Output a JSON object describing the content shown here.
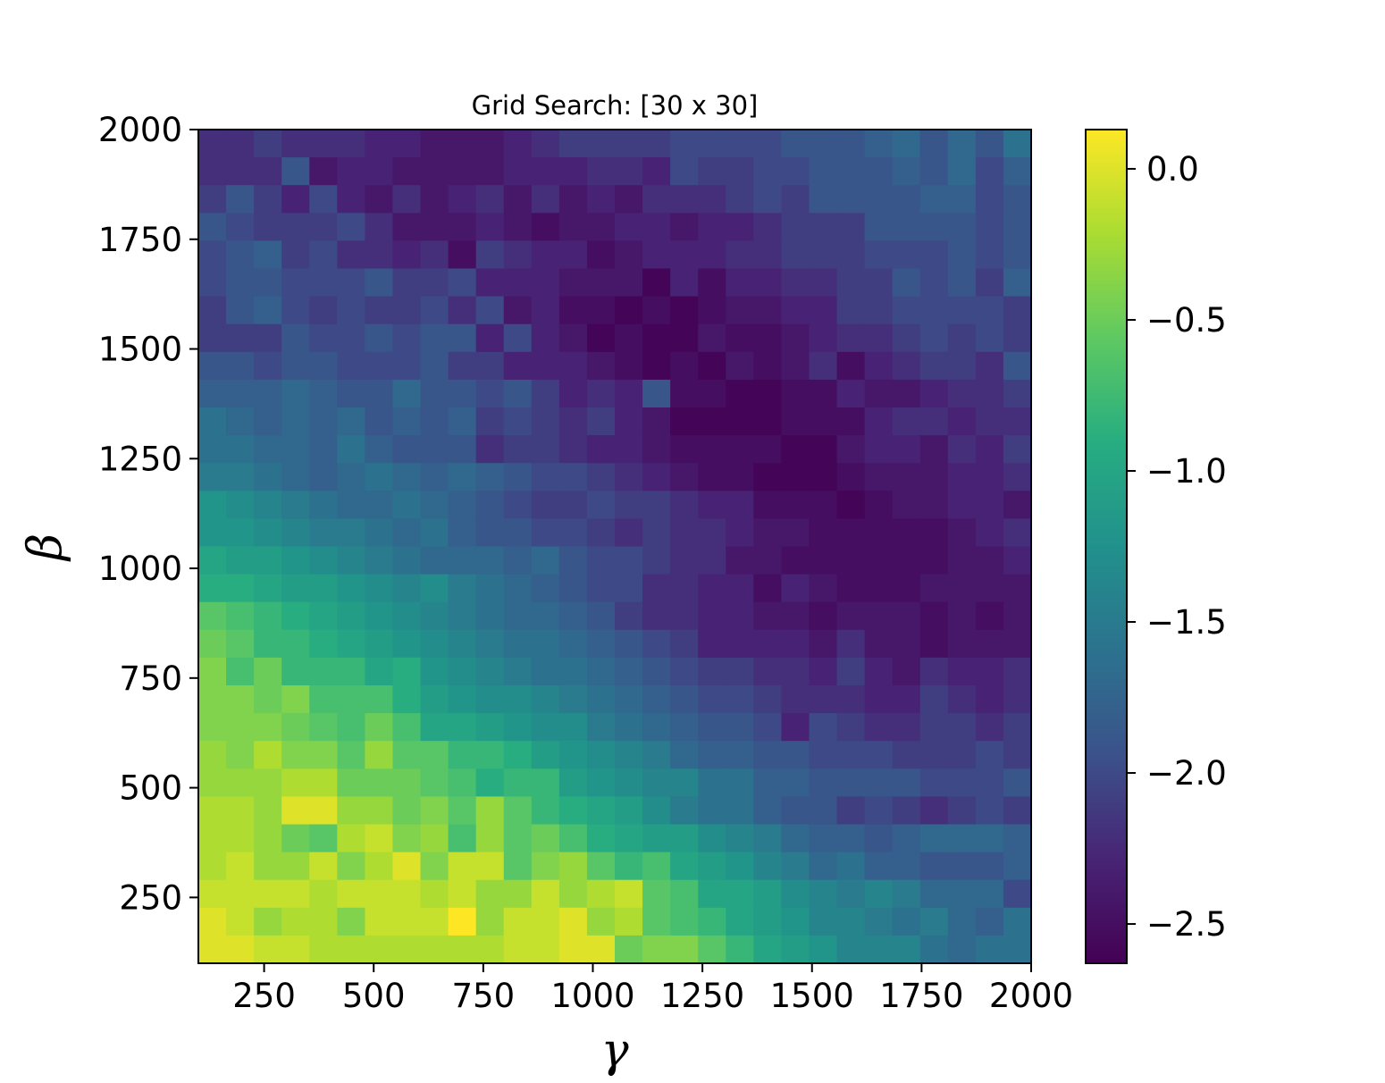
{
  "chart_data": {
    "type": "heatmap",
    "title": "Grid Search: [30 x 30]",
    "xlabel": "γ",
    "ylabel": "β",
    "xlim": [
      100,
      2000
    ],
    "ylim": [
      100,
      2000
    ],
    "x_ticks": [
      250,
      500,
      750,
      1000,
      1250,
      1500,
      1750,
      2000
    ],
    "y_ticks": [
      250,
      500,
      750,
      1000,
      1250,
      1500,
      1750,
      2000
    ],
    "colorbar": {
      "colormap": "viridis",
      "vmin": -2.63,
      "vmax": 0.13,
      "ticks": [
        0.0,
        -0.5,
        -1.0,
        -1.5,
        -2.0,
        -2.5
      ],
      "tick_labels": [
        "0.0",
        "−0.5",
        "−1.0",
        "−1.5",
        "−2.0",
        "−2.5"
      ]
    },
    "grid_size": [
      30,
      30
    ],
    "z_rows_top_to_bottom": [
      [
        -2.2,
        -2.2,
        -2.1,
        -2.2,
        -2.2,
        -2.2,
        -2.3,
        -2.3,
        -2.4,
        -2.4,
        -2.4,
        -2.3,
        -2.2,
        -2.1,
        -2.1,
        -2.1,
        -2.1,
        -2.0,
        -2.0,
        -2.0,
        -2.0,
        -1.9,
        -1.9,
        -1.9,
        -1.8,
        -1.7,
        -1.9,
        -1.7,
        -1.9,
        -1.6
      ],
      [
        -2.2,
        -2.2,
        -2.2,
        -1.9,
        -2.4,
        -2.3,
        -2.3,
        -2.4,
        -2.4,
        -2.4,
        -2.4,
        -2.3,
        -2.3,
        -2.3,
        -2.2,
        -2.2,
        -2.3,
        -2.0,
        -2.1,
        -2.1,
        -2.0,
        -2.0,
        -1.9,
        -1.9,
        -1.9,
        -1.8,
        -1.9,
        -1.7,
        -2.0,
        -1.8
      ],
      [
        -2.1,
        -1.9,
        -2.1,
        -2.3,
        -2.0,
        -2.3,
        -2.4,
        -2.2,
        -2.4,
        -2.3,
        -2.2,
        -2.4,
        -2.2,
        -2.4,
        -2.3,
        -2.4,
        -2.2,
        -2.2,
        -2.2,
        -2.1,
        -2.0,
        -2.1,
        -1.9,
        -1.9,
        -1.9,
        -1.9,
        -1.8,
        -1.8,
        -2.0,
        -1.9
      ],
      [
        -1.9,
        -2.0,
        -2.1,
        -2.1,
        -2.1,
        -2.0,
        -2.2,
        -2.4,
        -2.4,
        -2.4,
        -2.3,
        -2.4,
        -2.5,
        -2.4,
        -2.4,
        -2.3,
        -2.3,
        -2.4,
        -2.3,
        -2.3,
        -2.2,
        -2.1,
        -2.1,
        -2.1,
        -1.9,
        -1.9,
        -1.9,
        -1.9,
        -2.0,
        -1.9
      ],
      [
        -2.0,
        -1.9,
        -1.8,
        -2.1,
        -2.0,
        -2.2,
        -2.2,
        -2.3,
        -2.2,
        -2.5,
        -2.1,
        -2.2,
        -2.3,
        -2.3,
        -2.5,
        -2.4,
        -2.3,
        -2.3,
        -2.3,
        -2.2,
        -2.2,
        -2.1,
        -2.1,
        -2.1,
        -2.0,
        -2.0,
        -2.0,
        -1.9,
        -2.0,
        -1.9
      ],
      [
        -2.0,
        -1.9,
        -1.9,
        -2.0,
        -2.0,
        -2.0,
        -1.9,
        -2.1,
        -2.1,
        -2.0,
        -2.3,
        -2.3,
        -2.3,
        -2.4,
        -2.4,
        -2.4,
        -2.6,
        -2.3,
        -2.5,
        -2.3,
        -2.3,
        -2.2,
        -2.2,
        -2.1,
        -2.1,
        -1.9,
        -2.0,
        -1.9,
        -2.1,
        -1.8
      ],
      [
        -2.1,
        -1.9,
        -1.8,
        -2.0,
        -2.1,
        -2.0,
        -2.1,
        -2.1,
        -2.0,
        -2.2,
        -2.0,
        -2.4,
        -2.3,
        -2.5,
        -2.5,
        -2.6,
        -2.5,
        -2.6,
        -2.5,
        -2.4,
        -2.4,
        -2.3,
        -2.3,
        -2.1,
        -2.1,
        -2.0,
        -2.0,
        -2.0,
        -2.0,
        -2.1
      ],
      [
        -2.1,
        -2.1,
        -2.1,
        -1.9,
        -2.0,
        -2.0,
        -1.9,
        -2.0,
        -1.9,
        -1.9,
        -2.3,
        -2.0,
        -2.3,
        -2.4,
        -2.6,
        -2.5,
        -2.6,
        -2.6,
        -2.4,
        -2.5,
        -2.5,
        -2.4,
        -2.3,
        -2.2,
        -2.2,
        -2.1,
        -2.0,
        -2.1,
        -2.0,
        -2.1
      ],
      [
        -1.9,
        -1.9,
        -2.0,
        -1.9,
        -1.9,
        -2.0,
        -2.0,
        -2.0,
        -1.9,
        -2.1,
        -2.1,
        -2.3,
        -2.3,
        -2.3,
        -2.4,
        -2.5,
        -2.6,
        -2.5,
        -2.6,
        -2.4,
        -2.5,
        -2.4,
        -2.2,
        -2.5,
        -2.3,
        -2.2,
        -2.1,
        -2.1,
        -2.2,
        -1.9
      ],
      [
        -1.8,
        -1.8,
        -1.8,
        -1.7,
        -1.8,
        -1.9,
        -1.9,
        -1.7,
        -1.9,
        -1.9,
        -2.0,
        -1.9,
        -2.1,
        -2.3,
        -2.2,
        -2.3,
        -1.9,
        -2.5,
        -2.5,
        -2.6,
        -2.6,
        -2.5,
        -2.5,
        -2.3,
        -2.4,
        -2.4,
        -2.3,
        -2.2,
        -2.2,
        -2.1
      ],
      [
        -1.6,
        -1.7,
        -1.8,
        -1.7,
        -1.8,
        -1.7,
        -1.9,
        -1.8,
        -1.9,
        -1.8,
        -2.1,
        -2.0,
        -2.1,
        -2.2,
        -2.1,
        -2.3,
        -2.4,
        -2.6,
        -2.6,
        -2.6,
        -2.6,
        -2.5,
        -2.5,
        -2.5,
        -2.3,
        -2.2,
        -2.2,
        -2.3,
        -2.2,
        -2.2
      ],
      [
        -1.6,
        -1.6,
        -1.7,
        -1.7,
        -1.8,
        -1.6,
        -1.8,
        -1.9,
        -1.9,
        -1.9,
        -2.2,
        -2.1,
        -2.1,
        -2.2,
        -2.3,
        -2.3,
        -2.4,
        -2.5,
        -2.5,
        -2.5,
        -2.5,
        -2.6,
        -2.6,
        -2.4,
        -2.3,
        -2.3,
        -2.4,
        -2.2,
        -2.3,
        -2.1
      ],
      [
        -1.5,
        -1.5,
        -1.6,
        -1.7,
        -1.8,
        -1.7,
        -1.6,
        -1.7,
        -1.8,
        -1.7,
        -1.8,
        -1.9,
        -2.0,
        -2.0,
        -2.1,
        -2.2,
        -2.3,
        -2.4,
        -2.5,
        -2.5,
        -2.6,
        -2.6,
        -2.6,
        -2.5,
        -2.4,
        -2.4,
        -2.4,
        -2.3,
        -2.3,
        -2.2
      ],
      [
        -1.2,
        -1.3,
        -1.4,
        -1.5,
        -1.6,
        -1.7,
        -1.7,
        -1.6,
        -1.7,
        -1.8,
        -1.9,
        -2.0,
        -2.1,
        -2.1,
        -2.0,
        -2.1,
        -2.1,
        -2.2,
        -2.3,
        -2.3,
        -2.5,
        -2.5,
        -2.5,
        -2.6,
        -2.5,
        -2.4,
        -2.4,
        -2.3,
        -2.3,
        -2.4
      ],
      [
        -1.2,
        -1.2,
        -1.3,
        -1.4,
        -1.5,
        -1.5,
        -1.6,
        -1.7,
        -1.6,
        -1.8,
        -1.9,
        -1.9,
        -2.0,
        -2.0,
        -2.1,
        -2.2,
        -2.1,
        -2.2,
        -2.2,
        -2.3,
        -2.4,
        -2.4,
        -2.5,
        -2.5,
        -2.5,
        -2.5,
        -2.5,
        -2.4,
        -2.3,
        -2.2
      ],
      [
        -1.0,
        -1.1,
        -1.1,
        -1.2,
        -1.3,
        -1.4,
        -1.5,
        -1.6,
        -1.7,
        -1.7,
        -1.7,
        -1.8,
        -1.7,
        -1.9,
        -2.0,
        -2.0,
        -2.1,
        -2.2,
        -2.2,
        -2.4,
        -2.4,
        -2.5,
        -2.5,
        -2.5,
        -2.5,
        -2.5,
        -2.5,
        -2.4,
        -2.4,
        -2.3
      ],
      [
        -0.9,
        -0.9,
        -1.0,
        -1.1,
        -1.1,
        -1.2,
        -1.3,
        -1.4,
        -1.3,
        -1.5,
        -1.6,
        -1.7,
        -1.8,
        -1.9,
        -2.0,
        -2.0,
        -2.2,
        -2.2,
        -2.3,
        -2.3,
        -2.5,
        -2.3,
        -2.4,
        -2.5,
        -2.5,
        -2.5,
        -2.4,
        -2.4,
        -2.4,
        -2.4
      ],
      [
        -0.6,
        -0.7,
        -0.8,
        -0.9,
        -1.0,
        -1.1,
        -1.2,
        -1.3,
        -1.4,
        -1.5,
        -1.6,
        -1.7,
        -1.7,
        -1.8,
        -1.9,
        -2.1,
        -2.2,
        -2.2,
        -2.3,
        -2.3,
        -2.4,
        -2.4,
        -2.5,
        -2.4,
        -2.4,
        -2.4,
        -2.5,
        -2.4,
        -2.5,
        -2.4
      ],
      [
        -0.5,
        -0.6,
        -0.8,
        -0.8,
        -0.9,
        -1.0,
        -1.1,
        -1.2,
        -1.3,
        -1.4,
        -1.5,
        -1.6,
        -1.6,
        -1.7,
        -1.8,
        -1.9,
        -2.0,
        -2.1,
        -2.3,
        -2.3,
        -2.3,
        -2.3,
        -2.4,
        -2.2,
        -2.4,
        -2.4,
        -2.5,
        -2.4,
        -2.4,
        -2.4
      ],
      [
        -0.4,
        -0.7,
        -0.5,
        -0.8,
        -0.8,
        -0.8,
        -1.0,
        -0.9,
        -1.2,
        -1.3,
        -1.4,
        -1.5,
        -1.6,
        -1.6,
        -1.7,
        -1.8,
        -1.9,
        -2.0,
        -2.1,
        -2.1,
        -2.2,
        -2.2,
        -2.3,
        -2.1,
        -2.3,
        -2.4,
        -2.2,
        -2.3,
        -2.3,
        -2.2
      ],
      [
        -0.4,
        -0.4,
        -0.5,
        -0.4,
        -0.7,
        -0.7,
        -0.7,
        -0.9,
        -1.1,
        -1.2,
        -1.3,
        -1.3,
        -1.4,
        -1.5,
        -1.6,
        -1.7,
        -1.8,
        -1.9,
        -2.0,
        -2.0,
        -2.1,
        -2.2,
        -2.2,
        -2.2,
        -2.3,
        -2.3,
        -2.1,
        -2.2,
        -2.3,
        -2.2
      ],
      [
        -0.4,
        -0.4,
        -0.4,
        -0.5,
        -0.6,
        -0.7,
        -0.5,
        -0.7,
        -1.0,
        -1.0,
        -1.1,
        -1.2,
        -1.3,
        -1.3,
        -1.5,
        -1.6,
        -1.7,
        -1.8,
        -1.9,
        -1.9,
        -2.0,
        -2.3,
        -2.0,
        -2.1,
        -2.2,
        -2.2,
        -2.1,
        -2.1,
        -2.2,
        -2.1
      ],
      [
        -0.3,
        -0.4,
        -0.2,
        -0.4,
        -0.4,
        -0.6,
        -0.3,
        -0.6,
        -0.6,
        -0.8,
        -0.8,
        -0.9,
        -1.1,
        -1.2,
        -1.3,
        -1.4,
        -1.5,
        -1.7,
        -1.8,
        -1.8,
        -1.9,
        -1.9,
        -2.0,
        -2.0,
        -2.0,
        -2.1,
        -2.1,
        -2.1,
        -2.0,
        -2.1
      ],
      [
        -0.3,
        -0.3,
        -0.3,
        -0.2,
        -0.2,
        -0.5,
        -0.5,
        -0.5,
        -0.6,
        -0.7,
        -0.9,
        -0.8,
        -0.8,
        -1.1,
        -1.2,
        -1.3,
        -1.4,
        -1.4,
        -1.6,
        -1.6,
        -1.8,
        -1.8,
        -1.9,
        -1.9,
        -1.9,
        -1.9,
        -2.0,
        -2.0,
        -2.0,
        -1.9
      ],
      [
        -0.2,
        -0.2,
        -0.3,
        -0.0,
        -0.0,
        -0.3,
        -0.3,
        -0.5,
        -0.4,
        -0.6,
        -0.3,
        -0.6,
        -0.8,
        -0.9,
        -1.0,
        -1.1,
        -1.3,
        -1.5,
        -1.6,
        -1.6,
        -1.8,
        -1.9,
        -1.9,
        -2.1,
        -2.0,
        -2.1,
        -2.2,
        -2.1,
        -2.0,
        -2.1
      ],
      [
        -0.2,
        -0.2,
        -0.3,
        -0.5,
        -0.6,
        -0.2,
        -0.1,
        -0.4,
        -0.3,
        -0.7,
        -0.3,
        -0.6,
        -0.5,
        -0.7,
        -0.9,
        -1.0,
        -1.1,
        -1.1,
        -1.3,
        -1.4,
        -1.5,
        -1.7,
        -1.8,
        -1.8,
        -1.9,
        -1.8,
        -1.7,
        -1.7,
        -1.7,
        -1.8
      ],
      [
        -0.2,
        -0.1,
        -0.3,
        -0.3,
        -0.1,
        -0.4,
        -0.2,
        0.0,
        -0.4,
        -0.1,
        -0.1,
        -0.6,
        -0.4,
        -0.3,
        -0.6,
        -0.8,
        -0.7,
        -1.0,
        -1.1,
        -1.2,
        -1.4,
        -1.5,
        -1.7,
        -1.6,
        -1.8,
        -1.8,
        -1.9,
        -1.9,
        -1.9,
        -1.8
      ],
      [
        -0.1,
        -0.1,
        -0.1,
        -0.1,
        -0.2,
        -0.1,
        -0.1,
        -0.1,
        -0.2,
        -0.1,
        -0.3,
        -0.3,
        -0.1,
        -0.3,
        -0.2,
        -0.1,
        -0.6,
        -0.7,
        -1.0,
        -1.0,
        -1.1,
        -1.3,
        -1.4,
        -1.5,
        -1.4,
        -1.5,
        -1.7,
        -1.7,
        -1.7,
        -2.0
      ],
      [
        0.0,
        -0.1,
        -0.3,
        -0.2,
        -0.2,
        -0.4,
        -0.1,
        -0.1,
        -0.1,
        0.13,
        -0.3,
        -0.1,
        -0.1,
        0.0,
        -0.3,
        -0.2,
        -0.6,
        -0.7,
        -0.8,
        -1.0,
        -1.1,
        -1.2,
        -1.4,
        -1.4,
        -1.5,
        -1.6,
        -1.5,
        -1.7,
        -1.8,
        -1.6
      ],
      [
        0.0,
        0.0,
        -0.1,
        -0.1,
        -0.2,
        -0.2,
        -0.2,
        -0.2,
        -0.2,
        -0.2,
        -0.2,
        -0.1,
        -0.1,
        0.0,
        0.0,
        -0.5,
        -0.4,
        -0.4,
        -0.6,
        -0.8,
        -1.0,
        -1.1,
        -1.2,
        -1.4,
        -1.4,
        -1.4,
        -1.6,
        -1.7,
        -1.6,
        -1.6
      ]
    ]
  }
}
